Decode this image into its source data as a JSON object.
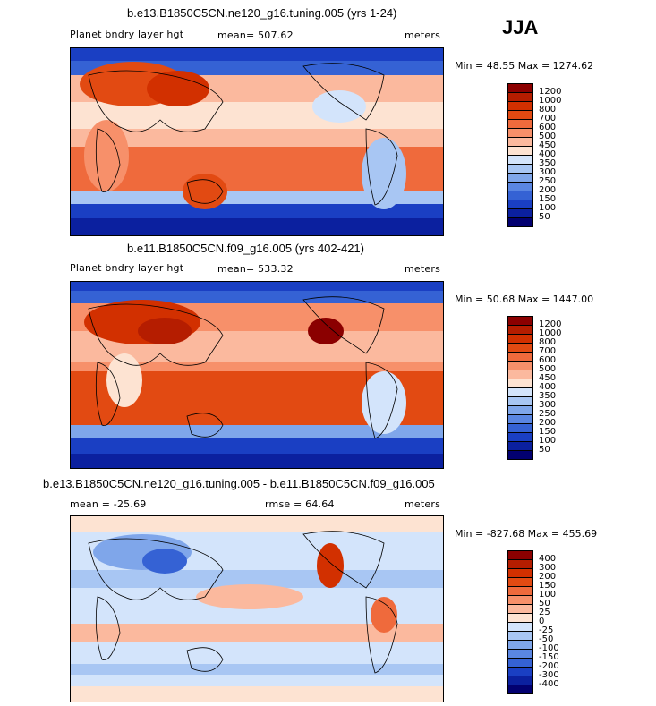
{
  "season": "JJA",
  "panels": [
    {
      "title": "b.e13.B1850C5CN.ne120_g16.tuning.005 (yrs 1-24)",
      "variable": "Planet bndry layer hgt",
      "mean": "mean= 507.62",
      "units": "meters",
      "minmax": "Min =  48.55 Max = 1274.62",
      "levels": [
        "1200",
        "1000",
        "800",
        "700",
        "600",
        "500",
        "450",
        "400",
        "350",
        "300",
        "250",
        "200",
        "150",
        "100",
        "50"
      ],
      "colors": [
        "#8b0000",
        "#b51d00",
        "#d23000",
        "#e24a12",
        "#ef6a3c",
        "#f7906a",
        "#fbb99e",
        "#fde3d2",
        "#d3e4fb",
        "#a8c6f3",
        "#7fa6ea",
        "#5a86e2",
        "#3562d4",
        "#1a3fc3",
        "#0b209f",
        "#020070"
      ]
    },
    {
      "title": "b.e11.B1850C5CN.f09_g16.005 (yrs 402-421)",
      "variable": "Planet bndry layer hgt",
      "mean": "mean= 533.32",
      "units": "meters",
      "minmax": "Min =  50.68 Max = 1447.00",
      "levels": [
        "1200",
        "1000",
        "800",
        "700",
        "600",
        "500",
        "450",
        "400",
        "350",
        "300",
        "250",
        "200",
        "150",
        "100",
        "50"
      ],
      "colors": [
        "#8b0000",
        "#b51d00",
        "#d23000",
        "#e24a12",
        "#ef6a3c",
        "#f7906a",
        "#fbb99e",
        "#fde3d2",
        "#d3e4fb",
        "#a8c6f3",
        "#7fa6ea",
        "#5a86e2",
        "#3562d4",
        "#1a3fc3",
        "#0b209f",
        "#020070"
      ]
    },
    {
      "title": "b.e13.B1850C5CN.ne120_g16.tuning.005 - b.e11.B1850C5CN.f09_g16.005",
      "mean": "mean = -25.69",
      "rmse": "rmse =  64.64",
      "units": "meters",
      "minmax": "Min = -827.68 Max = 455.69",
      "levels": [
        "400",
        "300",
        "200",
        "150",
        "100",
        "50",
        "25",
        "0",
        "-25",
        "-50",
        "-100",
        "-150",
        "-200",
        "-300",
        "-400"
      ],
      "colors": [
        "#8b0000",
        "#b51d00",
        "#d23000",
        "#e24a12",
        "#ef6a3c",
        "#f7906a",
        "#fbb99e",
        "#fde3d2",
        "#d3e4fb",
        "#a8c6f3",
        "#7fa6ea",
        "#5a86e2",
        "#3562d4",
        "#1a3fc3",
        "#0b209f",
        "#020070"
      ]
    }
  ]
}
